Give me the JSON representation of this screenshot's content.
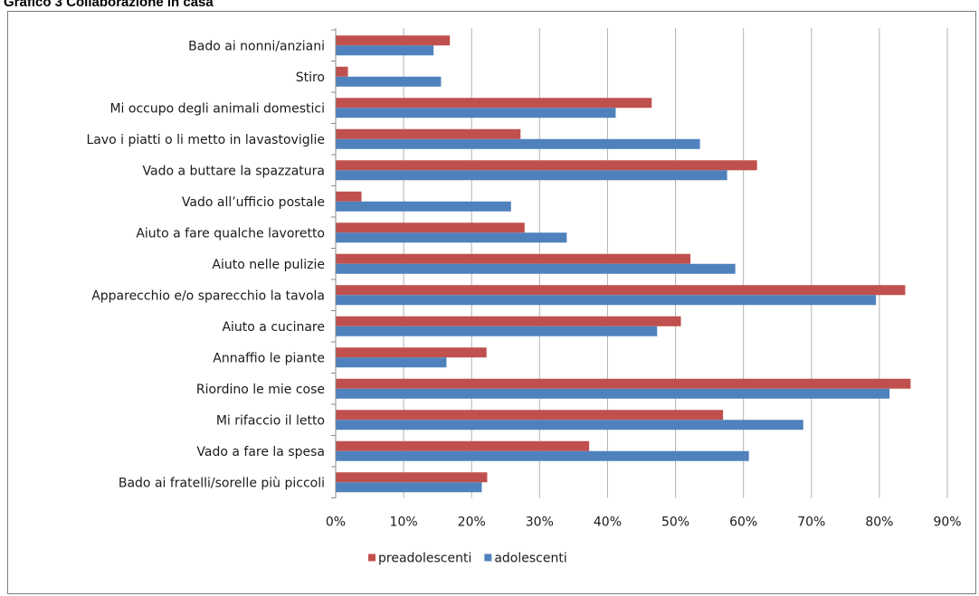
{
  "page": {
    "title": "Grafico 3 Collaborazione in casa"
  },
  "chart_data": {
    "type": "bar",
    "orientation": "horizontal",
    "title": "Grafico 3 Collaborazione in casa",
    "categories": [
      "Bado ai nonni/anziani",
      "Stiro",
      "Mi occupo degli animali domestici",
      "Lavo i piatti o li metto in lavastoviglie",
      "Vado a buttare la spazzatura",
      "Vado all’ufficio postale",
      "Aiuto a fare qualche lavoretto",
      "Aiuto nelle pulizie",
      "Apparecchio e/o sparecchio la tavola",
      "Aiuto a cucinare",
      "Annaffio le piante",
      "Riordino le mie cose",
      "Mi rifaccio il letto",
      "Vado a fare la spesa",
      "Bado ai fratelli/sorelle più piccoli"
    ],
    "series": [
      {
        "name": "preadolescenti",
        "color": "#c0504d",
        "values": [
          16.8,
          1.8,
          46.5,
          27.2,
          62.0,
          3.8,
          27.8,
          52.2,
          83.8,
          50.8,
          22.2,
          84.6,
          57.0,
          37.3,
          22.3
        ]
      },
      {
        "name": "adolescenti",
        "color": "#4f81bd",
        "values": [
          14.4,
          15.5,
          41.2,
          53.6,
          57.6,
          25.8,
          34.0,
          58.8,
          79.5,
          47.3,
          16.3,
          81.5,
          68.8,
          60.8,
          21.5
        ]
      }
    ],
    "xlim": [
      0,
      90
    ],
    "x_ticks": [
      0,
      10,
      20,
      30,
      40,
      50,
      60,
      70,
      80,
      90
    ],
    "x_tick_labels": [
      "0%",
      "10%",
      "20%",
      "30%",
      "40%",
      "50%",
      "60%",
      "70%",
      "80%",
      "90%"
    ],
    "xlabel": "",
    "ylabel": "",
    "grid": "vertical",
    "legend": "bottom"
  }
}
